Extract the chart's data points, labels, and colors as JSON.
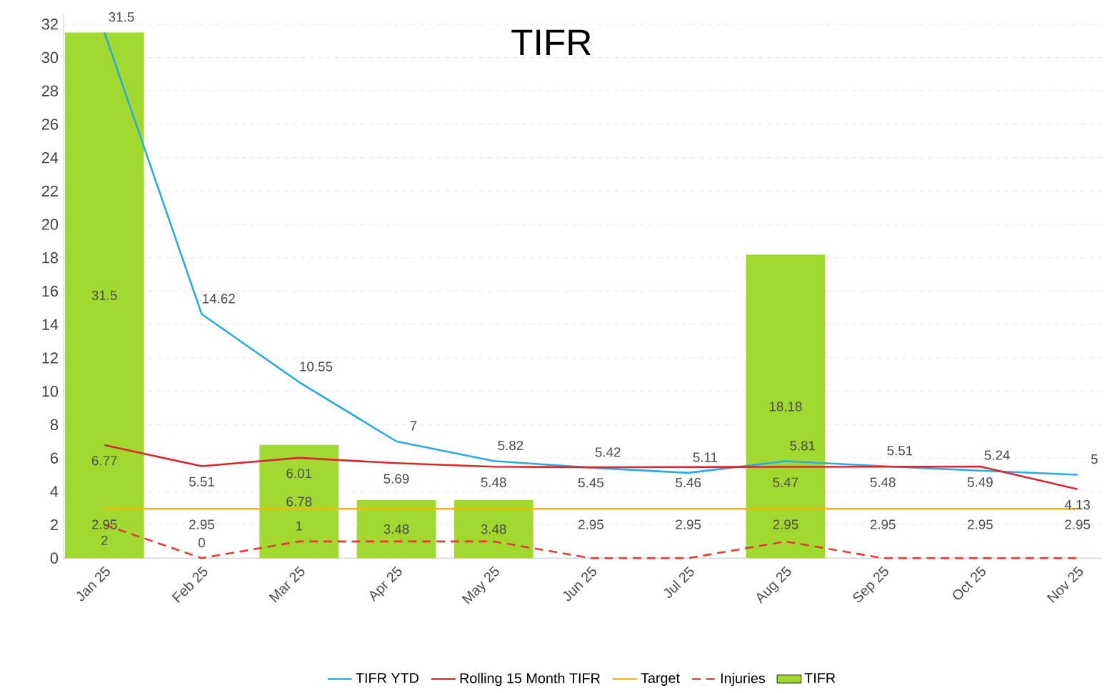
{
  "chart_data": {
    "type": "line",
    "title": "TIFR",
    "categories": [
      "Jan 25",
      "Feb 25",
      "Mar 25",
      "Apr 25",
      "May 25",
      "Jun 25",
      "Jul 25",
      "Aug 25",
      "Sep 25",
      "Oct 25",
      "Nov 25"
    ],
    "series": [
      {
        "name": "TIFR YTD",
        "color": "#29abe2",
        "line_style": "solid",
        "values": [
          31.5,
          14.62,
          10.55,
          7,
          5.82,
          5.42,
          5.11,
          5.81,
          5.51,
          5.24,
          5
        ],
        "value_labels": [
          "31.5",
          "14.62",
          "10.55",
          "7",
          "5.82",
          "5.42",
          "5.11",
          "5.81",
          "5.51",
          "5.24",
          "5"
        ]
      },
      {
        "name": "Rolling 15 Month TIFR",
        "color": "#d42a2f",
        "line_style": "solid",
        "values": [
          6.77,
          5.51,
          6.01,
          5.69,
          5.48,
          5.45,
          5.46,
          5.47,
          5.48,
          5.49,
          4.13
        ],
        "value_labels": [
          "6.77",
          "5.51",
          "6.01",
          "5.69",
          "5.48",
          "5.45",
          "5.46",
          "5.47",
          "5.48",
          "5.49",
          "4.13"
        ]
      },
      {
        "name": "Target",
        "color": "#ffb400",
        "line_style": "solid",
        "values": [
          2.95,
          2.95,
          2.95,
          2.95,
          2.95,
          2.95,
          2.95,
          2.95,
          2.95,
          2.95,
          2.95
        ],
        "value_labels": [
          "2.95",
          "2.95",
          null,
          null,
          null,
          "2.95",
          "2.95",
          "2.95",
          "2.95",
          "2.95",
          "2.95"
        ]
      },
      {
        "name": "Injuries",
        "color": "#e53935",
        "line_style": "dashed",
        "values": [
          2,
          0,
          1,
          1,
          1,
          0,
          0,
          1,
          0,
          0,
          0
        ],
        "value_labels": [
          "2",
          "0",
          "1",
          null,
          null,
          null,
          null,
          null,
          null,
          null,
          null
        ]
      },
      {
        "name": "TIFR",
        "type": "bar",
        "color": "#a2d930",
        "values": [
          31.5,
          0,
          6.78,
          3.48,
          3.48,
          0,
          0,
          18.18,
          0,
          0,
          0
        ],
        "value_labels": [
          "31.5",
          null,
          "6.78",
          "3.48",
          "3.48",
          null,
          null,
          "18.18",
          null,
          null,
          null
        ]
      }
    ],
    "ylim": [
      0,
      32.6
    ],
    "yticks": [
      0,
      2,
      4,
      6,
      8,
      10,
      12,
      14,
      16,
      18,
      20,
      22,
      24,
      26,
      28,
      30,
      32
    ],
    "grid": "y",
    "legend": "bottom",
    "marker": "none"
  }
}
